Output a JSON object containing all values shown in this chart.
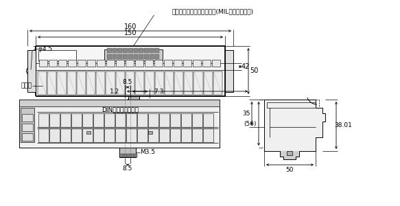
{
  "bg_color": "#ffffff",
  "line_color": "#000000",
  "gray_color": "#666666",
  "labels": {
    "flat_cable": "フラットケーブルコネクタ(MILタイププラグ)",
    "terminal_block": "端子台",
    "din_lock": "DINレール用ロック",
    "dim_160": "160",
    "dim_150": "150",
    "dim_42": "42",
    "dim_50_top": "50",
    "dim_2phi45": "2-φ4.5",
    "dim_8_5_top": "8.5",
    "dim_1_2": "1.2",
    "dim_7_3": "7.3",
    "dim_56": "(56)",
    "dim_35": "35",
    "dim_38_01": "38.01",
    "dim_50_bot": "50",
    "dim_m3_5": "M3.5",
    "dim_8_5_bot": "8.5"
  }
}
